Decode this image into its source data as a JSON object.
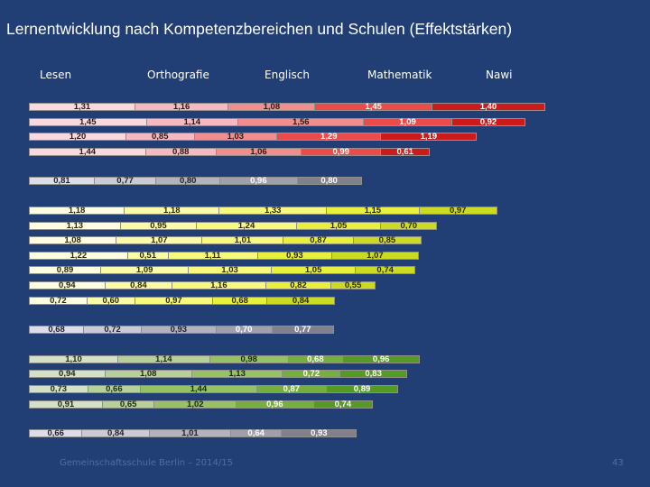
{
  "title": "Lernentwicklung nach Kompetenzbereichen und Schulen  (Effektstärken)",
  "footer": {
    "left": "Gemeinschaftsschule Berlin – 2014/15",
    "page": "43"
  },
  "colors": {
    "background": "#213f74",
    "red": [
      "#f9d9de",
      "#f6b9c2",
      "#f08f8f",
      "#ea4b4b",
      "#cc1b1b"
    ],
    "gray": [
      "#dcdde8",
      "#cbcbd6",
      "#b3b3be",
      "#9fa0ab",
      "#80818c"
    ],
    "yellow": [
      "#fdfde2",
      "#fbfba7",
      "#f8f87c",
      "#e8ef3d",
      "#ccdb22"
    ],
    "green": [
      "#d3e2c6",
      "#b5d198",
      "#95c262",
      "#75b03e",
      "#559a25"
    ]
  },
  "chart_data": {
    "type": "bar",
    "orientation": "horizontal-stacked",
    "title": "Lernentwicklung nach Kompetenzbereichen und Schulen  (Effektstärken)",
    "series_names": [
      "Lesen",
      "Orthografie",
      "Englisch",
      "Mathematik",
      "Nawi"
    ],
    "groups": [
      {
        "palette": "red",
        "rows": [
          [
            1.31,
            1.16,
            1.08,
            1.45,
            1.4
          ],
          [
            1.45,
            1.14,
            1.56,
            1.09,
            0.92
          ],
          [
            1.2,
            0.85,
            1.03,
            1.29,
            1.19
          ],
          [
            1.44,
            0.88,
            1.06,
            0.99,
            0.61
          ]
        ]
      },
      {
        "palette": "gray",
        "rows": [
          [
            0.81,
            0.77,
            0.8,
            0.96,
            0.8
          ]
        ]
      },
      {
        "palette": "yellow",
        "rows": [
          [
            1.18,
            1.18,
            1.33,
            1.15,
            0.97
          ],
          [
            1.13,
            0.95,
            1.24,
            1.05,
            0.7
          ],
          [
            1.08,
            1.07,
            1.01,
            0.87,
            0.85
          ],
          [
            1.22,
            0.51,
            1.11,
            0.93,
            1.07
          ],
          [
            0.89,
            1.09,
            1.03,
            1.05,
            0.74
          ],
          [
            0.94,
            0.84,
            1.16,
            0.82,
            0.55
          ],
          [
            0.72,
            0.6,
            0.97,
            0.68,
            0.84
          ]
        ]
      },
      {
        "palette": "gray",
        "rows": [
          [
            0.68,
            0.72,
            0.93,
            0.7,
            0.77
          ]
        ]
      },
      {
        "palette": "green",
        "rows": [
          [
            1.1,
            1.14,
            0.98,
            0.68,
            0.96
          ],
          [
            0.94,
            1.08,
            1.13,
            0.72,
            0.83
          ],
          [
            0.73,
            0.66,
            1.44,
            0.87,
            0.89
          ],
          [
            0.91,
            0.65,
            1.02,
            0.96,
            0.74
          ]
        ]
      },
      {
        "palette": "gray",
        "rows": [
          [
            0.66,
            0.84,
            1.01,
            0.64,
            0.93
          ]
        ]
      }
    ]
  }
}
